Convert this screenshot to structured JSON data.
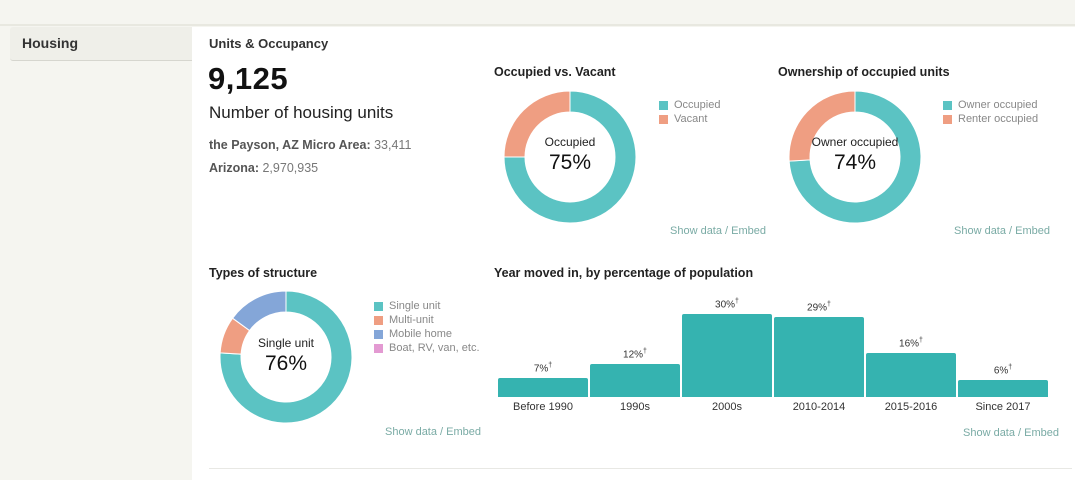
{
  "sidebar": {
    "items": [
      {
        "label": "Housing",
        "active": true
      }
    ]
  },
  "section": {
    "title": "Units & Occupancy",
    "headline_value": "9,125",
    "headline_label": "Number of housing units",
    "comparisons": [
      {
        "label": "the Payson, AZ Micro Area:",
        "value": "33,411"
      },
      {
        "label": "Arizona:",
        "value": "2,970,935"
      }
    ]
  },
  "colors": {
    "teal": "#5bc3c3",
    "salmon": "#ef9e82",
    "blue": "#84a6d8",
    "pink": "#e39ad2",
    "bar": "#35b3b0",
    "link": "#7aaba5"
  },
  "links": {
    "show_data": "Show data",
    "separator": " / ",
    "embed": "Embed"
  },
  "chart_data": [
    {
      "type": "pie",
      "variant": "donut",
      "title": "Occupied vs. Vacant",
      "categories": [
        "Occupied",
        "Vacant"
      ],
      "values": [
        75,
        25
      ],
      "center_label": "Occupied",
      "center_value": "75%",
      "legend_position": "right"
    },
    {
      "type": "pie",
      "variant": "donut",
      "title": "Ownership of occupied units",
      "categories": [
        "Owner occupied",
        "Renter occupied"
      ],
      "values": [
        74,
        26
      ],
      "center_label": "Owner occupied",
      "center_value": "74%",
      "legend_position": "right"
    },
    {
      "type": "pie",
      "variant": "donut",
      "title": "Types of structure",
      "categories": [
        "Single unit",
        "Multi-unit",
        "Mobile home",
        "Boat, RV, van, etc."
      ],
      "values": [
        76,
        9,
        15,
        0
      ],
      "center_label": "Single unit",
      "center_value": "76%",
      "legend_position": "right"
    },
    {
      "type": "bar",
      "title": "Year moved in, by percentage of population",
      "categories": [
        "Before 1990",
        "1990s",
        "2000s",
        "2010-2014",
        "2015-2016",
        "Since 2017"
      ],
      "values": [
        7,
        12,
        30,
        29,
        16,
        6
      ],
      "value_labels": [
        "7%",
        "12%",
        "30%",
        "29%",
        "16%",
        "6%"
      ],
      "value_marker": "†",
      "xlabel": "",
      "ylabel": "",
      "ylim": [
        0,
        30
      ],
      "grid": false
    }
  ]
}
